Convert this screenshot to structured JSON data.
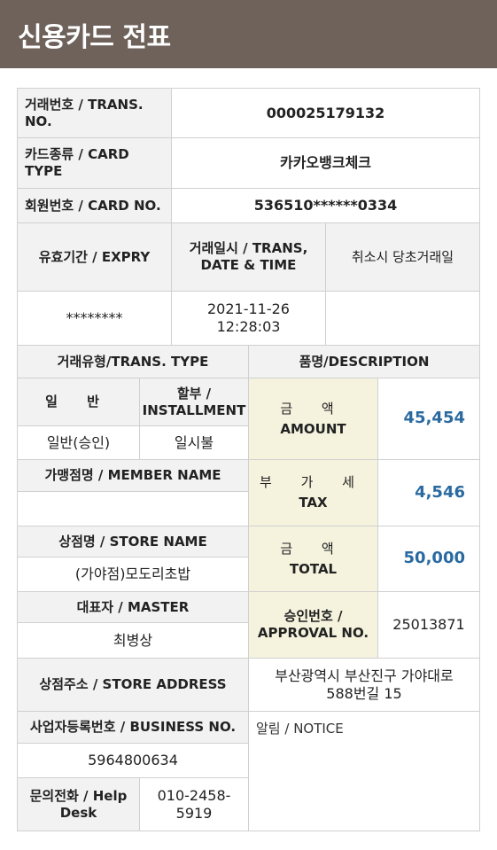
{
  "header": {
    "title": "신용카드 전표"
  },
  "rows": {
    "trans_no": {
      "label": "거래번호 / TRANS. NO.",
      "value": "000025179132"
    },
    "card_type": {
      "label": "카드종류 / CARD TYPE",
      "value": "카카오뱅크체크"
    },
    "card_no": {
      "label": "회원번호 / CARD NO.",
      "value": "536510******0334"
    },
    "expiry": {
      "label": "유효기간 / EXPRY",
      "value": "********"
    },
    "trans_date": {
      "label": "거래일시 / TRANS, DATE & TIME",
      "value_date": "2021-11-26",
      "value_time": "12:28:03"
    },
    "cancel": {
      "label": "취소시 당초거래일",
      "value": ""
    },
    "trans_type": {
      "label": "거래유형/TRANS. TYPE",
      "general_label": "일 반",
      "general_value": "일반(승인)",
      "installment_label": "할부 / INSTALLMENT",
      "installment_value": "일시불"
    },
    "description": {
      "label": "품명/DESCRIPTION"
    },
    "amount": {
      "label_ko": "금 액",
      "label_en": "AMOUNT",
      "value": "45,454"
    },
    "tax": {
      "label_ko": "부 가 세",
      "label_en": "TAX",
      "value": "4,546"
    },
    "total": {
      "label_ko": "금 액",
      "label_en": "TOTAL",
      "value": "50,000"
    },
    "member_name": {
      "label": "가맹점명 / MEMBER NAME",
      "value": ""
    },
    "store_name": {
      "label": "상점명 / STORE NAME",
      "value": "(가야점)모도리초밥"
    },
    "master": {
      "label": "대표자 / MASTER",
      "value": "최병상"
    },
    "approval": {
      "label": "승인번호 / APPROVAL NO.",
      "value": "25013871"
    },
    "store_address": {
      "label": "상점주소 / STORE ADDRESS",
      "value": "부산광역시 부산진구 가야대로 588번길 15"
    },
    "business_no": {
      "label": "사업자등록번호 / BUSINESS NO.",
      "value": "5964800634"
    },
    "notice": {
      "label": "알림 / NOTICE"
    },
    "help_desk": {
      "label": "문의전화 / Help Desk",
      "value": "010-2458-5919"
    }
  }
}
